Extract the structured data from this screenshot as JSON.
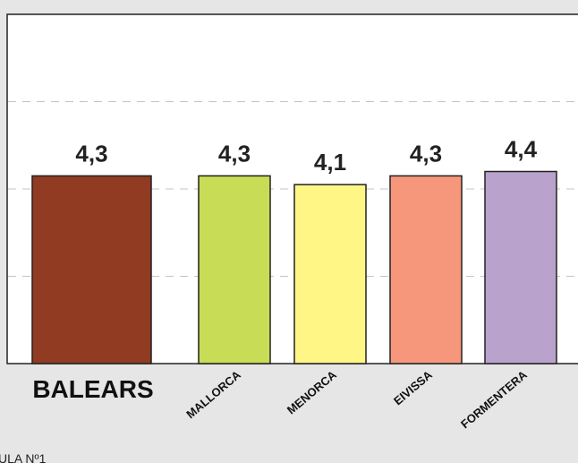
{
  "chart_data": {
    "type": "bar",
    "categories": [
      "BALEARS",
      "MALLORCA",
      "MENORCA",
      "EIVISSA",
      "FORMENTERA"
    ],
    "values": [
      4.3,
      4.3,
      4.1,
      4.3,
      4.4
    ],
    "value_labels": [
      "4,3",
      "4,3",
      "4,1",
      "4,3",
      "4,4"
    ],
    "colors": [
      "#913b22",
      "#c8dc55",
      "#fff685",
      "#f6977b",
      "#b9a2cc"
    ],
    "ylim": [
      0,
      8
    ],
    "grid": true,
    "title": "",
    "xlabel": "",
    "ylabel": ""
  },
  "footer_text": "ULA Nº1"
}
